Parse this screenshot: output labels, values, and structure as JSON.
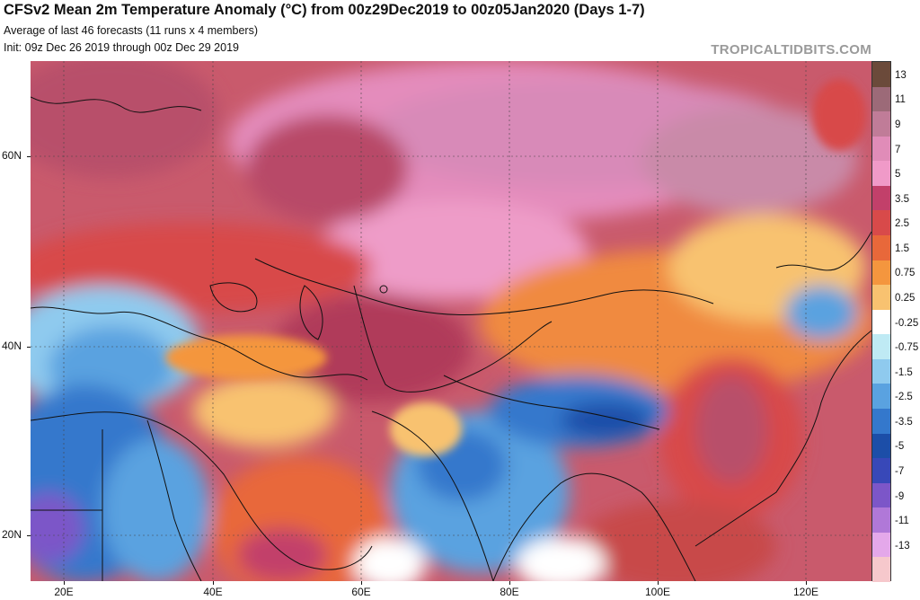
{
  "header": {
    "title": "CFSv2 Mean 2m Temperature Anomaly (°C) from 00z29Dec2019 to 00z05Jan2020 (Days 1-7)",
    "subtitle": "Average of last 46 forecasts (11 runs x 4 members)",
    "init": "Init: 09z Dec 26 2019 through 00z Dec 29 2019",
    "brand": "TROPICALTIDBITS.COM"
  },
  "axes": {
    "lat_labels": [
      "60N",
      "40N",
      "20N"
    ],
    "lon_labels": [
      "20E",
      "40E",
      "60E",
      "80E",
      "100E",
      "120E"
    ]
  },
  "colorbar": {
    "labels": [
      "13",
      "11",
      "9",
      "7",
      "5",
      "3.5",
      "2.5",
      "1.5",
      "0.75",
      "0.25",
      "-0.25",
      "-0.75",
      "-1.5",
      "-2.5",
      "-3.5",
      "-5",
      "-7",
      "-9",
      "-11",
      "-13"
    ],
    "colors": [
      "#6b4a3a",
      "#9c6a78",
      "#c07c98",
      "#e08cb8",
      "#f09ac8",
      "#c2406a",
      "#d84a4a",
      "#e8683a",
      "#f4963e",
      "#f8c270",
      "#ffffff",
      "#bfeaf4",
      "#8fcaee",
      "#5aa2e0",
      "#3478cc",
      "#1c4ea8",
      "#3848b8",
      "#7c56c8",
      "#b078d8",
      "#e4a8ea",
      "#f6c8cc"
    ]
  },
  "legend_colors": {
    "strong_warm": "#b03a5a",
    "warm": "#e8683a",
    "mild_warm": "#f8c270",
    "neutral": "#ffffff",
    "cool": "#5aa2e0",
    "cold": "#1c4ea8",
    "very_warm_pink": "#f09ac8"
  }
}
